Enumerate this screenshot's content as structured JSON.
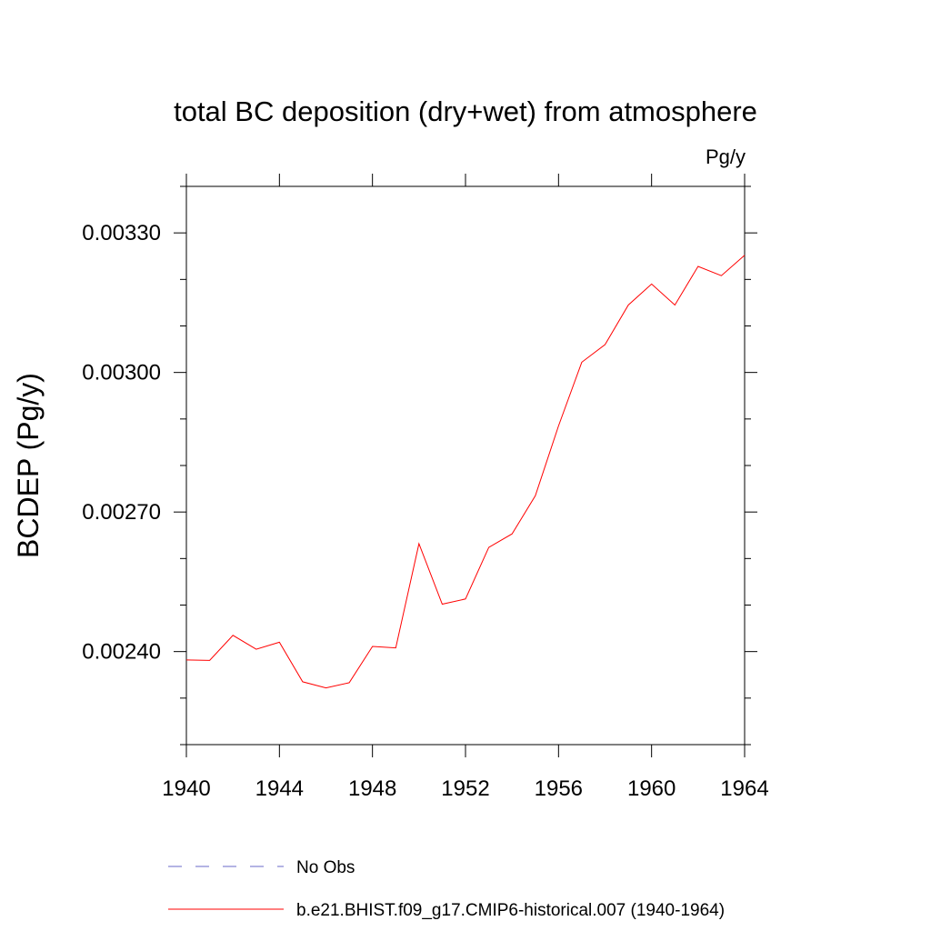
{
  "chart_data": {
    "type": "line",
    "title": "total BC deposition (dry+wet) from atmosphere",
    "units_label": "Pg/y",
    "xlabel": "",
    "ylabel": "BCDEP  (Pg/y)",
    "xlim": [
      1940,
      1964
    ],
    "ylim": [
      0.0022,
      0.0034
    ],
    "x_ticks": [
      1940,
      1944,
      1948,
      1952,
      1956,
      1960,
      1964
    ],
    "x_tick_labels": [
      "1940",
      "1944",
      "1948",
      "1952",
      "1956",
      "1960",
      "1964"
    ],
    "y_ticks": [
      0.0024,
      0.0027,
      0.003,
      0.0033
    ],
    "y_tick_labels": [
      "0.00240",
      "0.00270",
      "0.00300",
      "0.00330"
    ],
    "grid": false,
    "legend_position": "bottom",
    "series": [
      {
        "name": "b.e21.BHIST.f09_g17.CMIP6-historical.007 (1940-1964)",
        "color": "#ff0000",
        "dash": "solid",
        "x": [
          1940,
          1941,
          1942,
          1943,
          1944,
          1945,
          1946,
          1947,
          1948,
          1949,
          1950,
          1951,
          1952,
          1953,
          1954,
          1955,
          1956,
          1957,
          1958,
          1959,
          1960,
          1961,
          1962,
          1963,
          1964
        ],
        "y": [
          0.002382,
          0.002381,
          0.002435,
          0.002405,
          0.00242,
          0.002335,
          0.002322,
          0.002333,
          0.002411,
          0.002408,
          0.002632,
          0.002502,
          0.002513,
          0.002624,
          0.002653,
          0.002735,
          0.002885,
          0.003022,
          0.00306,
          0.003145,
          0.00319,
          0.003145,
          0.003228,
          0.003208,
          0.003252
        ]
      }
    ],
    "legend": [
      {
        "label": "No Obs",
        "color": "#6a6ac8",
        "dash": "dashed"
      },
      {
        "label": "b.e21.BHIST.f09_g17.CMIP6-historical.007 (1940-1964)",
        "color": "#ff0000",
        "dash": "solid"
      }
    ]
  }
}
